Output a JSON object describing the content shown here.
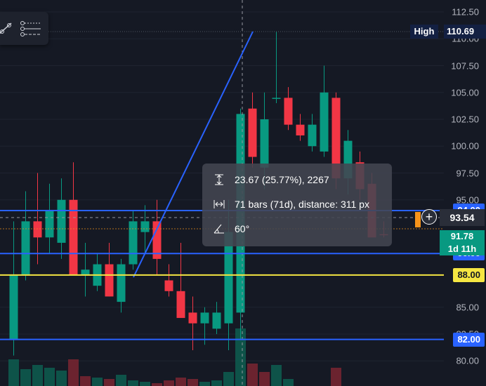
{
  "price_axis": {
    "ticks": [
      "112.50",
      "110.00",
      "107.50",
      "105.00",
      "102.50",
      "100.00",
      "97.50",
      "95.00",
      "85.00",
      "82.50",
      "80.00"
    ]
  },
  "high": {
    "label": "High",
    "value": "110.69"
  },
  "levels": [
    {
      "value": "94.00",
      "color": "#2962ff"
    },
    {
      "value": "90.00",
      "color": "#2962ff"
    },
    {
      "value": "88.00",
      "color": "#f5e642"
    },
    {
      "value": "82.00",
      "color": "#2962ff"
    }
  ],
  "crosshair_price": "93.54",
  "last_price": {
    "value": "91.78",
    "countdown": "1d 11h"
  },
  "measure_tooltip": {
    "price_change": "23.67 (25.77%), 2267",
    "bars_distance": "71 bars (71d), distance: 311 px",
    "angle": "60°"
  },
  "toolbar": {
    "icons": [
      "trend-line-icon",
      "multipoint-line-icon"
    ]
  },
  "colors": {
    "up": "#089981",
    "down": "#f23645",
    "background": "#151924",
    "accent": "#2962ff"
  }
}
